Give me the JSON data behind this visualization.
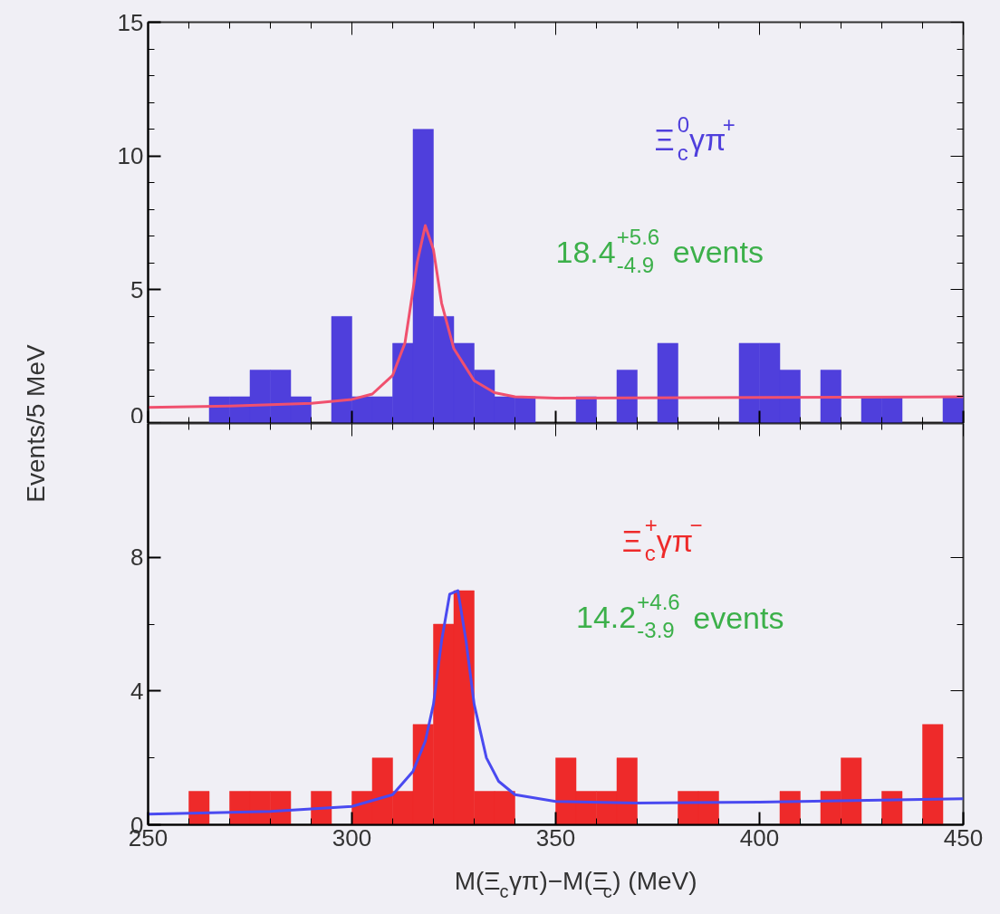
{
  "chart_data": [
    {
      "type": "histogram",
      "ylabel": "Events/5 MeV",
      "xlim": [
        250,
        450
      ],
      "xticks": [
        250,
        300,
        350,
        400,
        450
      ],
      "ylim": [
        0,
        15
      ],
      "yticks": [
        0,
        5,
        10,
        15
      ],
      "tick_labels": "y",
      "bins": [
        260,
        265,
        270,
        275,
        280,
        285,
        290,
        295,
        300,
        305,
        310,
        315,
        320,
        325,
        330,
        335,
        340,
        345,
        350,
        355,
        360,
        365,
        370,
        375,
        380,
        385,
        390,
        395,
        400,
        405,
        410,
        415,
        420,
        425,
        430,
        435,
        440,
        445,
        450
      ],
      "series": [
        {
          "color": "#4f3fdc",
          "values": [
            0,
            1,
            1,
            2,
            2,
            1,
            0,
            4,
            1,
            1,
            3,
            11,
            4,
            3,
            2,
            1,
            1,
            0,
            0,
            1,
            0,
            2,
            0,
            3,
            0,
            0,
            0,
            3,
            3,
            2,
            0,
            2,
            0,
            1,
            1,
            0,
            0,
            1
          ]
        },
        {
          "type": "line",
          "color": "#f0506e",
          "x": [
            250,
            270,
            290,
            300,
            305,
            310,
            313,
            316,
            318,
            320,
            322,
            325,
            330,
            335,
            340,
            350,
            400,
            450
          ],
          "values": [
            0.6,
            0.65,
            0.75,
            0.9,
            1.1,
            1.8,
            3.0,
            6.0,
            7.4,
            6.5,
            4.5,
            2.8,
            1.6,
            1.15,
            1.0,
            0.95,
            0.97,
            1.0
          ]
        }
      ],
      "annotations": [
        "Ξ$_{c}$$^{0}$γπ$^{+}$",
        "18.4$^{+5.6}$$_{-4.9}$ events"
      ]
    },
    {
      "type": "histogram",
      "xlabel": "M(Ξ$_{c}$γπ)−M(Ξ$_{c}$) (MeV)",
      "xlim": [
        250,
        450
      ],
      "xticks": [
        250,
        300,
        350,
        400,
        450
      ],
      "ylim": [
        0,
        12
      ],
      "yticks": [
        0,
        4,
        8
      ],
      "bins": [
        260,
        265,
        270,
        275,
        280,
        285,
        290,
        295,
        300,
        305,
        310,
        315,
        320,
        325,
        330,
        335,
        340,
        345,
        350,
        355,
        360,
        365,
        370,
        375,
        380,
        385,
        390,
        395,
        400,
        405,
        410,
        415,
        420,
        425,
        430,
        435,
        440,
        445,
        450
      ],
      "series": [
        {
          "color": "#ee2a2a",
          "values": [
            1,
            0,
            1,
            1,
            1,
            0,
            1,
            0,
            1,
            2,
            1,
            3,
            6,
            7,
            1,
            1,
            0,
            0,
            2,
            1,
            1,
            2,
            0,
            0,
            1,
            1,
            0,
            0,
            0,
            1,
            0,
            1,
            2,
            0,
            1,
            0,
            3,
            0
          ]
        },
        {
          "type": "line",
          "color": "#4a4af0",
          "x": [
            250,
            280,
            300,
            310,
            315,
            318,
            320,
            322,
            324,
            326,
            328,
            330,
            333,
            336,
            340,
            350,
            370,
            400,
            450
          ],
          "values": [
            0.32,
            0.4,
            0.55,
            0.9,
            1.6,
            2.5,
            3.6,
            5.5,
            6.9,
            7.0,
            5.5,
            3.6,
            2.0,
            1.3,
            0.9,
            0.7,
            0.65,
            0.68,
            0.78
          ]
        }
      ],
      "annotations": [
        "Ξ$_{c}$$^{+}$γπ$^{−}$",
        "14.2$^{+4.6}$$_{-3.9}$ events"
      ]
    }
  ]
}
